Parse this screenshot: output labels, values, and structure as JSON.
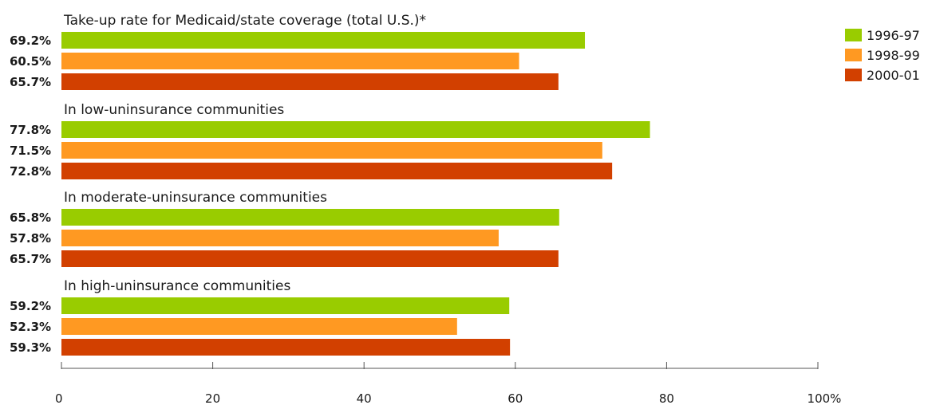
{
  "chart_data": {
    "type": "bar",
    "orientation": "horizontal",
    "xlim": [
      0,
      100
    ],
    "x_ticks": [
      0,
      20,
      40,
      60,
      80,
      100
    ],
    "x_tick_labels": [
      "0",
      "20",
      "40",
      "60",
      "80",
      "100%"
    ],
    "grid": false,
    "legend_position": "top-right",
    "series": [
      {
        "name": "1996-97",
        "color": "#99cc00"
      },
      {
        "name": "1998-99",
        "color": "#ff9922"
      },
      {
        "name": "2000-01",
        "color": "#d24000"
      }
    ],
    "groups": [
      {
        "title": "Take-up rate for Medicaid/state coverage (total U.S.)*",
        "values": [
          69.2,
          60.5,
          65.7
        ],
        "labels": [
          "69.2%",
          "60.5%",
          "65.7%"
        ]
      },
      {
        "title": "In low-uninsurance communities",
        "values": [
          77.8,
          71.5,
          72.8
        ],
        "labels": [
          "77.8%",
          "71.5%",
          "72.8%"
        ]
      },
      {
        "title": "In moderate-uninsurance communities",
        "values": [
          65.8,
          57.8,
          65.7
        ],
        "labels": [
          "65.8%",
          "57.8%",
          "65.7%"
        ]
      },
      {
        "title": "In high-uninsurance communities",
        "values": [
          59.2,
          52.3,
          59.3
        ],
        "labels": [
          "59.2%",
          "52.3%",
          "59.3%"
        ]
      }
    ]
  }
}
